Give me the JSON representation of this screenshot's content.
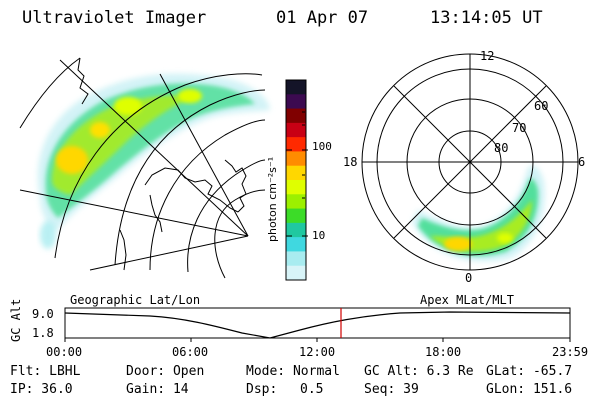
{
  "header": {
    "instrument": "Ultraviolet Imager",
    "date": "01 Apr 07",
    "time": "13:14:05 UT"
  },
  "colorbar": {
    "label": "photon cm⁻²s⁻¹",
    "ticks": [
      "100",
      "10"
    ],
    "colors": [
      "#141428",
      "#3c0a50",
      "#800000",
      "#c80014",
      "#ff2a00",
      "#ff8c00",
      "#ffd700",
      "#dfff00",
      "#9cf000",
      "#3cdc28",
      "#20c8a0",
      "#40d8e0",
      "#a8ecf0",
      "#d8f4f8"
    ]
  },
  "polar": {
    "mlt_labels": {
      "top": "12",
      "left": "18",
      "right": "6",
      "bottom": "0"
    },
    "lat_labels": [
      "60",
      "70",
      "80"
    ]
  },
  "timeline": {
    "y_axis_label": "GC Alt",
    "y_ticks": [
      "9.0",
      "1.8"
    ],
    "left_caption": "Geographic Lat/Lon",
    "right_caption": "Apex MLat/MLT",
    "x_ticks": [
      "00:00",
      "06:00",
      "12:00",
      "18:00",
      "23:59"
    ],
    "marker_color": "#d00000"
  },
  "info": {
    "filter": "Flt: LBHL",
    "ip": "IP: 36.0",
    "door": "Door: Open",
    "gain": "Gain: 14",
    "mode": "Mode: Normal",
    "dsp_label": "Dsp:",
    "dsp_value": "0.5",
    "gcalt": "GC Alt: 6.3 Re",
    "seq": "Seq: 39",
    "glat": "GLat: -65.7",
    "glon": "GLon: 151.6"
  }
}
